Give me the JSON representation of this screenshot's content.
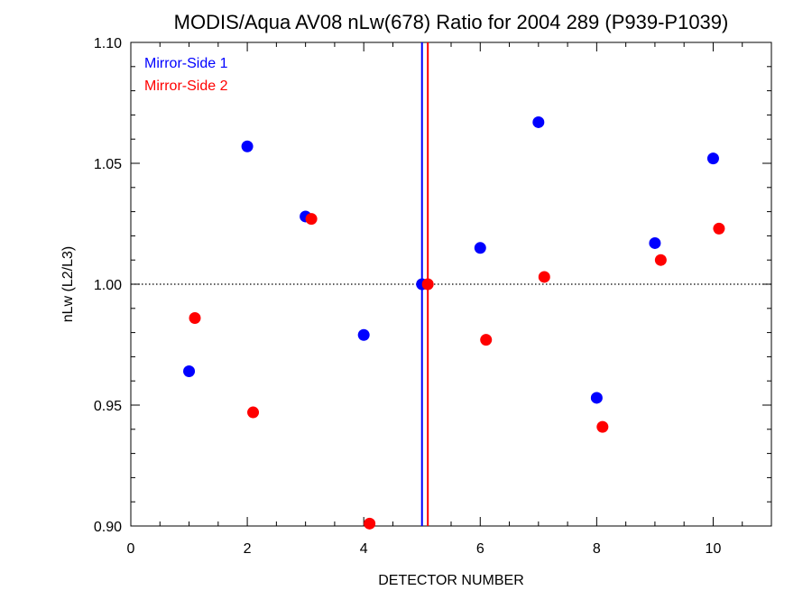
{
  "chart_data": {
    "type": "scatter",
    "title": "MODIS/Aqua AV08 nLw(678) Ratio for 2004 289 (P939-P1039)",
    "xlabel": "DETECTOR NUMBER",
    "ylabel": "nLw (L2/L3)",
    "xlim": [
      0,
      11
    ],
    "ylim": [
      0.9,
      1.1
    ],
    "xticks": [
      0,
      2,
      4,
      6,
      8,
      10
    ],
    "yticks": [
      0.9,
      0.95,
      1.0,
      1.05,
      1.1
    ],
    "xtick_labels": [
      "0",
      "2",
      "4",
      "6",
      "8",
      "10"
    ],
    "ytick_labels": [
      "0.90",
      "0.95",
      "1.00",
      "1.05",
      "1.10"
    ],
    "reference_line_y": 1.0,
    "legend_position": "top-left",
    "series": [
      {
        "name": "Mirror-Side 1",
        "color": "#0000ff",
        "x": [
          1,
          2,
          3,
          4,
          5,
          6,
          7,
          8,
          9,
          10
        ],
        "y": [
          0.964,
          1.057,
          1.028,
          0.979,
          1.0,
          1.015,
          1.067,
          0.953,
          1.017,
          1.052
        ],
        "vline_x": 5
      },
      {
        "name": "Mirror-Side 2",
        "color": "#ff0000",
        "x": [
          1.1,
          2.1,
          3.1,
          4.1,
          5.1,
          6.1,
          7.1,
          8.1,
          9.1,
          10.1
        ],
        "y": [
          0.986,
          0.947,
          1.027,
          0.901,
          1.0,
          0.977,
          1.003,
          0.941,
          1.01,
          1.023
        ],
        "vline_x": 5.1
      }
    ]
  }
}
